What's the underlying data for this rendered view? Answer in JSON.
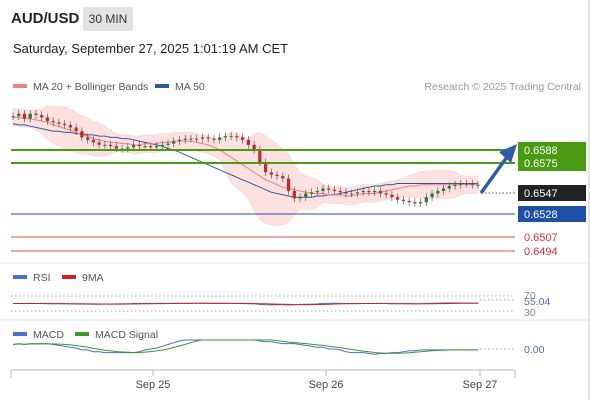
{
  "header": {
    "pair": "AUD/USD",
    "timeframe": "30 MIN",
    "datetime": "Saturday, September 27, 2025 1:01:19 AM CET"
  },
  "legend": {
    "ma20_bb": "MA 20 + Bollinger Bands",
    "ma50": "MA 50",
    "copyright": "Research © 2025 Trading Central"
  },
  "colors": {
    "ma20": "#f08080",
    "ma50": "#2e5a9c",
    "bollinger_fill": "#fde0e0",
    "green_level": "#4a9a12",
    "blue_level": "#1f4fa8",
    "red_level": "#e05050",
    "rsi": "#4a6fd0",
    "rsi_ma": "#d21f1f",
    "macd": "#4a6fd0",
    "macd_signal": "#3a9a22",
    "arrow": "#2e5aa6"
  },
  "levels": {
    "green_upper": "0.6588",
    "green_lower": "0.6575",
    "last": "0.6547",
    "blue": "0.6528",
    "red_upper": "0.6507",
    "red_lower": "0.6494"
  },
  "rsi_panel": {
    "label": "RSI",
    "ma_label": "9MA",
    "level_70": "70",
    "level_30": "30",
    "value": "55.04"
  },
  "macd_panel": {
    "label": "MACD",
    "signal_label": "MACD Signal",
    "value": "0.00"
  },
  "x_axis": {
    "ticks": [
      "Sep 25",
      "Sep 26",
      "Sep 27"
    ]
  },
  "chart_data": {
    "type": "line",
    "title": "AUD/USD 30 MIN",
    "ylim": [
      0.6485,
      0.6615
    ],
    "close": [
      0.6602,
      0.6604,
      0.66,
      0.6604,
      0.6603,
      0.6601,
      0.6598,
      0.6597,
      0.6596,
      0.6595,
      0.6593,
      0.659,
      0.6585,
      0.6583,
      0.6581,
      0.6579,
      0.6579,
      0.6578,
      0.6576,
      0.6576,
      0.6577,
      0.6579,
      0.6578,
      0.6578,
      0.6577,
      0.6578,
      0.6579,
      0.658,
      0.6582,
      0.6583,
      0.6584,
      0.6584,
      0.6584,
      0.6585,
      0.6584,
      0.6583,
      0.6585,
      0.6586,
      0.6586,
      0.6585,
      0.6583,
      0.6579,
      0.6575,
      0.6565,
      0.6557,
      0.6555,
      0.6554,
      0.6552,
      0.6542,
      0.6536,
      0.6537,
      0.654,
      0.6541,
      0.6542,
      0.6544,
      0.6543,
      0.6542,
      0.6541,
      0.654,
      0.654,
      0.6541,
      0.6542,
      0.6541,
      0.6542,
      0.654,
      0.6539,
      0.6537,
      0.6535,
      0.6534,
      0.6533,
      0.6532,
      0.6533,
      0.6537,
      0.654,
      0.6542,
      0.6544,
      0.6546,
      0.6547,
      0.6548,
      0.6548,
      0.6547,
      0.6547
    ],
    "ma20": [
      0.6601,
      0.6601,
      0.66,
      0.66,
      0.6599,
      0.6598,
      0.6597,
      0.6595,
      0.6594,
      0.6592,
      0.6591,
      0.6589,
      0.6587,
      0.6586,
      0.6584,
      0.6583,
      0.6582,
      0.6581,
      0.6581,
      0.658,
      0.658,
      0.6579,
      0.6579,
      0.658,
      0.658,
      0.658,
      0.6581,
      0.6581,
      0.6582,
      0.6582,
      0.6582,
      0.6582,
      0.6581,
      0.658,
      0.6579,
      0.6577,
      0.6575,
      0.6572,
      0.6569,
      0.6566,
      0.6563,
      0.656,
      0.6557,
      0.6554,
      0.6551,
      0.6549,
      0.6547,
      0.6545,
      0.6544,
      0.6543,
      0.6542,
      0.6541,
      0.654,
      0.654,
      0.654,
      0.6539,
      0.6539,
      0.6539,
      0.6538,
      0.6538,
      0.6539,
      0.654,
      0.654,
      0.654,
      0.6541,
      0.6542,
      0.6543,
      0.6544,
      0.6545,
      0.6546,
      0.6546,
      0.6547,
      0.6547,
      0.6547,
      0.6547,
      0.6547,
      0.6547,
      0.6547,
      0.6547,
      0.6547,
      0.6547,
      0.6547
    ],
    "ma50": [
      0.6596,
      0.6595,
      0.6595,
      0.6594,
      0.6593,
      0.6592,
      0.6591,
      0.659,
      0.659,
      0.6589,
      0.6589,
      0.6588,
      0.6588,
      0.6587,
      0.6587,
      0.6586,
      0.6586,
      0.6585,
      0.6585,
      0.6584,
      0.6584,
      0.6583,
      0.6582,
      0.6581,
      0.658,
      0.6579,
      0.6578,
      0.6576,
      0.6575,
      0.6573,
      0.6571,
      0.6569,
      0.6567,
      0.6565,
      0.6563,
      0.6561,
      0.6559,
      0.6557,
      0.6555,
      0.6553,
      0.6551,
      0.6549,
      0.6547,
      0.6545,
      0.6543,
      0.6541,
      0.654,
      0.6539,
      0.6538,
      0.6537,
      0.6537,
      0.6537,
      0.6537,
      0.6538,
      0.6538,
      0.6539,
      0.6539,
      0.654,
      0.6541,
      0.6542,
      0.6543,
      0.6544,
      0.6545,
      0.6546,
      0.6546,
      0.6547,
      0.6547,
      0.6548,
      0.6548,
      0.6548,
      0.6548,
      0.6548,
      0.6548,
      0.6548,
      0.6548,
      0.6548,
      0.6548,
      0.6548,
      0.6548,
      0.6548,
      0.6548,
      0.6548
    ]
  }
}
